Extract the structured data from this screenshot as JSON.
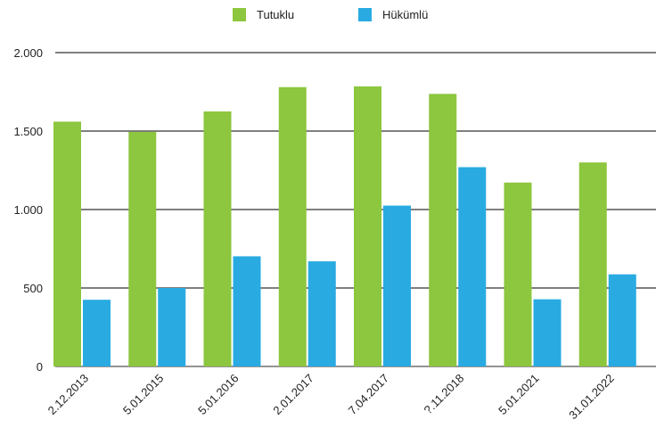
{
  "chart_data": {
    "type": "bar",
    "categories": [
      "2.12.2013",
      "5.01.2015",
      "5.01.2016",
      "2.01.2017",
      "7.04.2017",
      "?.11.2018",
      "5.01.2021",
      "31.01.2022"
    ],
    "series": [
      {
        "name": "Tutuklu",
        "color": "#8dc63f",
        "values": [
          1560,
          1495,
          1625,
          1780,
          1785,
          1737,
          1172,
          1300
        ]
      },
      {
        "name": "Hükümlü",
        "color": "#29abe2",
        "values": [
          425,
          500,
          702,
          670,
          1025,
          1270,
          428,
          587
        ]
      }
    ],
    "y_ticks": [
      {
        "value": 0,
        "label": "0"
      },
      {
        "value": 500,
        "label": "500"
      },
      {
        "value": 1000,
        "label": "1.000"
      },
      {
        "value": 1500,
        "label": "1.500"
      },
      {
        "value": 2000,
        "label": "2.000"
      }
    ],
    "ylim": [
      0,
      2000
    ],
    "grid": true,
    "legend_position": "top-center"
  }
}
